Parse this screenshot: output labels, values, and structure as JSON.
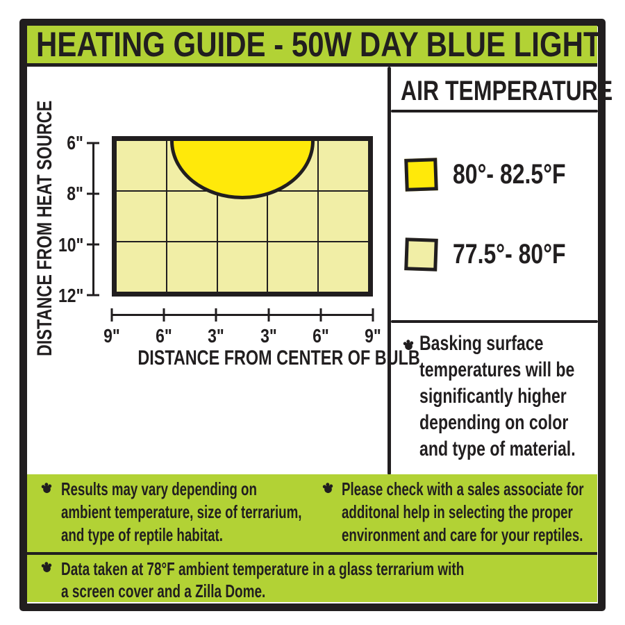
{
  "header": {
    "title": "HEATING GUIDE - 50W DAY BLUE LIGHT"
  },
  "colors": {
    "green": "#b2d235",
    "bright_yellow": "#ffe90a",
    "pale_yellow": "#f1eea6",
    "ink": "#211e1f"
  },
  "chart_data": {
    "type": "heatmap",
    "title": "HEATING GUIDE - 50W DAY BLUE LIGHT",
    "xlabel": "DISTANCE FROM CENTER OF BULB",
    "ylabel": "DISTANCE FROM HEAT SOURCE",
    "x_ticks": [
      "9\"",
      "6\"",
      "3\"",
      "3\"",
      "6\"",
      "9\""
    ],
    "y_ticks": [
      "6\"",
      "8\"",
      "10\"",
      "12\""
    ],
    "grid": true,
    "legend_position": "right",
    "zones": [
      {
        "label": "80°- 82.5°F",
        "color": "#ffe90a",
        "region": "half-ellipse centered on bulb axis at top of plot, spanning about 6\" left to 6\" right of bulb center and reaching just past 8\" from the heat source"
      },
      {
        "label": "77.5°- 80°F",
        "color": "#f1eea6",
        "region": "remainder of plot area (9\" left to 9\" right, 6\" to 12\" from heat source)"
      }
    ]
  },
  "legend": {
    "title": "AIR TEMPERATURE",
    "items": [
      {
        "label": "80°- 82.5°F",
        "color": "#ffe90a"
      },
      {
        "label": "77.5°- 80°F",
        "color": "#f1eea6"
      }
    ]
  },
  "notes": {
    "basking": "Basking surface\ntemperatures will be\nsignificantly higher\ndepending on color\nand type of material.",
    "left": "Results may vary depending on\nambient temperature, size of terrarium,\nand type of reptile habitat.",
    "right": "Please check with a sales associate for\nadditonal help in selecting the proper\nenvironment and care for your reptiles.",
    "bottom": "Data taken at 78°F ambient temperature in a glass terrarium with\na screen cover and a Zilla Dome."
  }
}
